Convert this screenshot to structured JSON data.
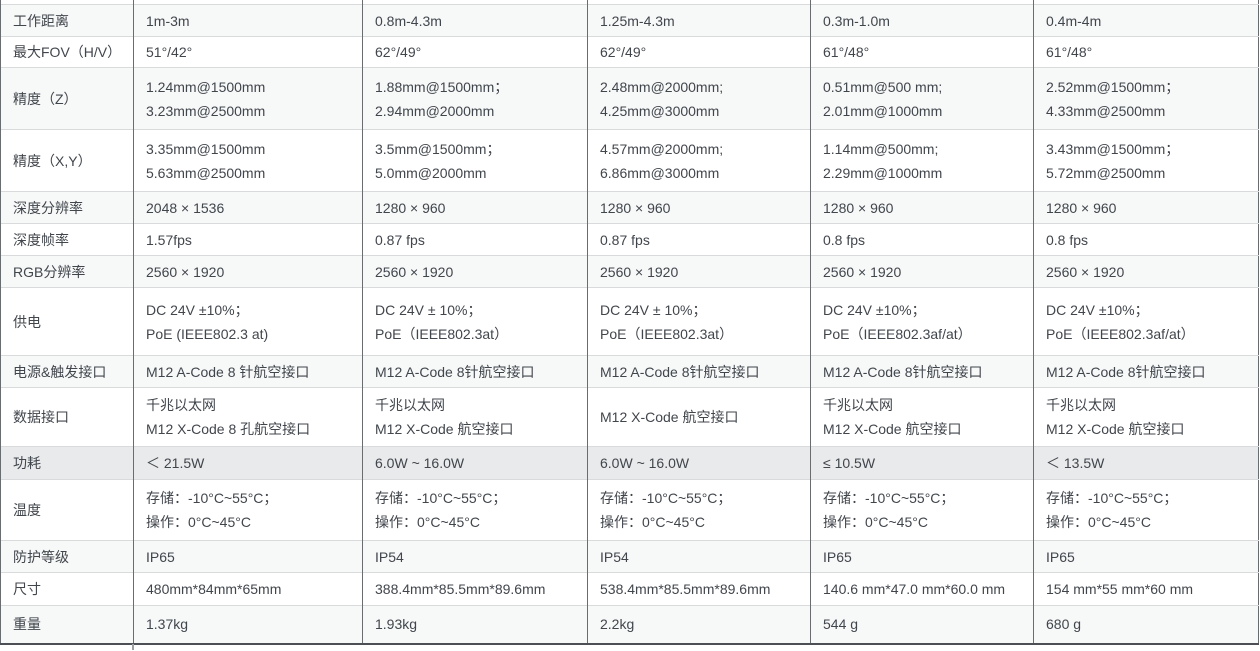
{
  "table": {
    "rows": [
      {
        "label": "工作距离",
        "cells": [
          "1m-3m",
          "0.8m-4.3m",
          "1.25m-4.3m",
          "0.3m-1.0m",
          "0.4m-4m"
        ]
      },
      {
        "label": "最大FOV（H/V）",
        "cells": [
          "51°/42°",
          "62°/49°",
          "62°/49°",
          "61°/48°",
          "61°/48°"
        ]
      },
      {
        "label": "精度（Z）",
        "cells": [
          "1.24mm@1500mm\n3.23mm@2500mm",
          "1.88mm@1500mm；\n2.94mm@2000mm",
          "2.48mm@2000mm;\n4.25mm@3000mm",
          "0.51mm@500 mm;\n2.01mm@1000mm",
          "2.52mm@1500mm；\n4.33mm@2500mm"
        ]
      },
      {
        "label": "精度（X,Y）",
        "cells": [
          "3.35mm@1500mm\n5.63mm@2500mm",
          "3.5mm@1500mm；\n5.0mm@2000mm",
          "4.57mm@2000mm;\n6.86mm@3000mm",
          "1.14mm@500mm;\n2.29mm@1000mm",
          "3.43mm@1500mm；\n5.72mm@2500mm"
        ]
      },
      {
        "label": "深度分辨率",
        "cells": [
          "2048 × 1536",
          "1280 × 960",
          "1280 × 960",
          "1280 × 960",
          "1280 × 960"
        ]
      },
      {
        "label": "深度帧率",
        "cells": [
          "1.57fps",
          "0.87 fps",
          "0.87 fps",
          "0.8 fps",
          "0.8 fps"
        ]
      },
      {
        "label": "RGB分辨率",
        "cells": [
          "2560 × 1920",
          "2560 × 1920",
          "2560 × 1920",
          "2560 × 1920",
          "2560 × 1920"
        ]
      },
      {
        "label": "供电",
        "cells": [
          "DC 24V ±10%；\nPoE (IEEE802.3 at)",
          "DC 24V ± 10%；\nPoE（IEEE802.3at）",
          "DC 24V ± 10%；\nPoE（IEEE802.3at）",
          "DC 24V ±10%；\nPoE（IEEE802.3af/at）",
          "DC 24V ±10%；\nPoE（IEEE802.3af/at）"
        ]
      },
      {
        "label": "电源&触发接口",
        "cells": [
          "M12 A-Code 8 针航空接口",
          "M12 A-Code 8针航空接口",
          "M12 A-Code 8针航空接口",
          "M12 A-Code 8针航空接口",
          "M12 A-Code 8针航空接口"
        ]
      },
      {
        "label": "数据接口",
        "cells": [
          "千兆以太网\nM12 X-Code 8 孔航空接口",
          "千兆以太网\nM12 X-Code 航空接口",
          "M12 X-Code 航空接口",
          "千兆以太网\nM12 X-Code 航空接口",
          "千兆以太网\nM12 X-Code 航空接口"
        ]
      },
      {
        "label": "功耗",
        "highlight": true,
        "cells": [
          "＜ 21.5W",
          "6.0W ~ 16.0W",
          "6.0W ~ 16.0W",
          "≤ 10.5W",
          "＜ 13.5W"
        ]
      },
      {
        "label": "温度",
        "cells": [
          "存储：-10°C~55°C；\n操作：0°C~45°C",
          "存储：-10°C~55°C；\n操作：0°C~45°C",
          "存储：-10°C~55°C；\n操作：0°C~45°C",
          "存储：-10°C~55°C；\n操作：0°C~45°C",
          "存储：-10°C~55°C；\n操作：0°C~45°C"
        ]
      },
      {
        "label": "防护等级",
        "cells": [
          "IP65",
          "IP54",
          "IP54",
          "IP65",
          "IP65"
        ]
      },
      {
        "label": "尺寸",
        "cells": [
          "480mm*84mm*65mm",
          "388.4mm*85.5mm*89.6mm",
          "538.4mm*85.5mm*89.6mm",
          "140.6 mm*47.0 mm*60.0 mm",
          "154 mm*55 mm*60 mm"
        ]
      },
      {
        "label": "重量",
        "cells": [
          "1.37kg",
          "1.93kg",
          "2.2kg",
          "544 g",
          "680 g"
        ]
      }
    ]
  },
  "colors": {
    "row_shade": "#f7f8f8",
    "row_highlight": "#e9eaeb",
    "grid_vertical": "#6a6d70",
    "grid_horizontal": "#d9dadb",
    "text": "#41464c"
  }
}
